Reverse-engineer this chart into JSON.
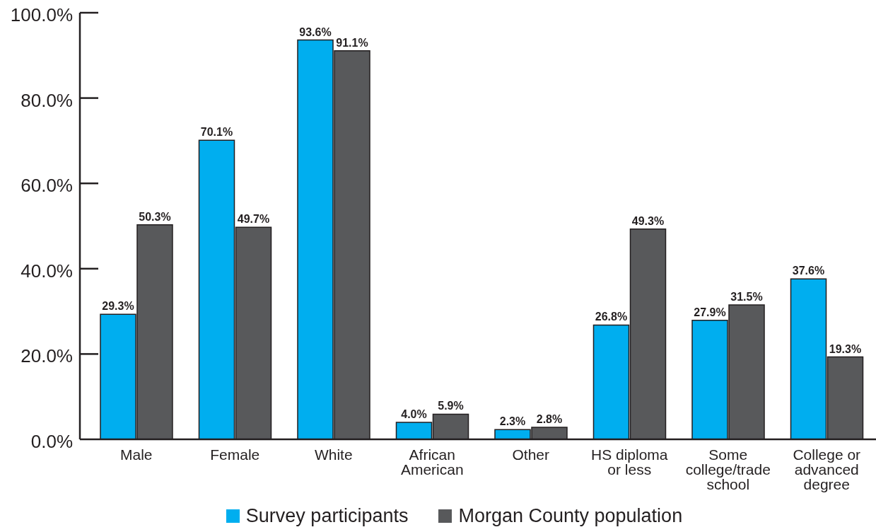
{
  "chart_data": {
    "type": "bar",
    "categories": [
      "Male",
      "Female",
      "White",
      "African American",
      "Other",
      "HS diploma or less",
      "Some college/trade school",
      "College or advanced degree"
    ],
    "series": [
      {
        "name": "Survey participants",
        "color": "#00aeef",
        "values": [
          29.3,
          70.1,
          93.6,
          4.0,
          2.3,
          26.8,
          27.9,
          37.6
        ],
        "value_labels": [
          "29.3%",
          "70.1%",
          "93.6%",
          "4.0%",
          "2.3%",
          "26.8%",
          "27.9%",
          "37.6%"
        ]
      },
      {
        "name": "Morgan County population",
        "color": "#58595b",
        "values": [
          50.3,
          49.7,
          91.1,
          5.9,
          2.8,
          49.3,
          31.5,
          19.3
        ],
        "value_labels": [
          "50.3%",
          "49.7%",
          "91.1%",
          "5.9%",
          "2.8%",
          "49.3%",
          "31.5%",
          "19.3%"
        ]
      }
    ],
    "ylim": [
      0,
      100
    ],
    "yticks": [
      {
        "value": 0,
        "label": "0.0%"
      },
      {
        "value": 20,
        "label": "20.0%"
      },
      {
        "value": 40,
        "label": "40.0%"
      },
      {
        "value": 60,
        "label": "60.0%"
      },
      {
        "value": 80,
        "label": "80.0%"
      },
      {
        "value": 100,
        "label": "100.0%"
      }
    ],
    "legend": "bottom"
  }
}
